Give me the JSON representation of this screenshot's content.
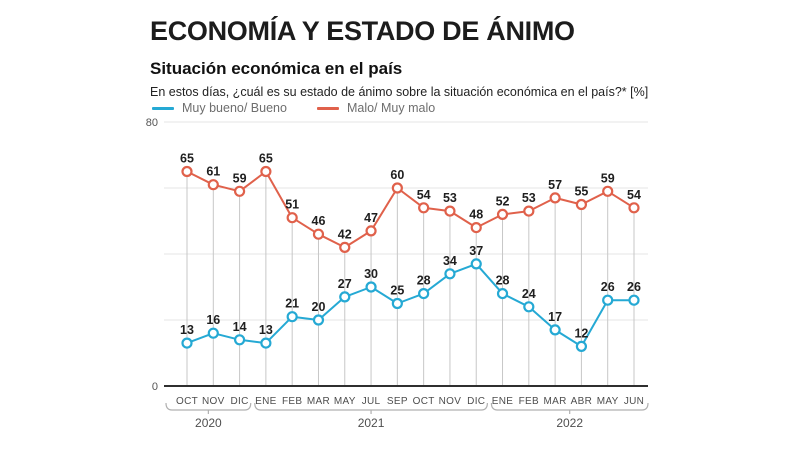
{
  "header": {
    "title": "ECONOMÍA Y ESTADO DE ÁNIMO",
    "subtitle": "Situación económica en el país",
    "question": "En estos días, ¿cuál es su estado de ánimo sobre la situación económica en el país?* [%]"
  },
  "legend": [
    {
      "label": "Muy bueno/ Bueno",
      "color": "#25a9d4"
    },
    {
      "label": "Malo/ Muy malo",
      "color": "#e0614b"
    }
  ],
  "colors": {
    "good_line": "#25a9d4",
    "bad_line": "#e0614b",
    "gridline": "#e4e4e4",
    "dropline": "#c7c7c7",
    "axis": "#2f2f2f",
    "value_label": "#1f1f1f",
    "month_label": "#4d4d4d",
    "year_label": "#4f4f4f",
    "bracket": "#b0b0b0",
    "ytick_label": "#555555"
  },
  "chart_data": {
    "type": "line",
    "title": "Situación económica en el país",
    "categories": [
      "OCT",
      "NOV",
      "DIC",
      "ENE",
      "FEB",
      "MAR",
      "MAY",
      "JUL",
      "SEP",
      "OCT",
      "NOV",
      "DIC",
      "ENE",
      "FEB",
      "MAR",
      "ABR",
      "MAY",
      "JUN"
    ],
    "year_groups": [
      {
        "label": "2020",
        "from": 0,
        "to": 2
      },
      {
        "label": "2021",
        "from": 3,
        "to": 11
      },
      {
        "label": "2022",
        "from": 12,
        "to": 17
      }
    ],
    "series": [
      {
        "name": "Malo/ Muy malo",
        "color": "#e0614b",
        "values": [
          65,
          61,
          59,
          65,
          51,
          46,
          42,
          47,
          60,
          54,
          53,
          48,
          52,
          53,
          57,
          55,
          59,
          54
        ]
      },
      {
        "name": "Muy bueno/ Bueno",
        "color": "#25a9d4",
        "values": [
          13,
          16,
          14,
          13,
          21,
          20,
          27,
          30,
          25,
          28,
          34,
          37,
          28,
          24,
          17,
          12,
          26,
          26
        ]
      }
    ],
    "ylim": [
      0,
      80
    ],
    "ytick_labels_shown": [
      "80",
      "0"
    ],
    "gridlines": [
      20,
      40,
      60,
      80
    ],
    "grid": true,
    "legend_position": "top",
    "value_labels": true
  }
}
